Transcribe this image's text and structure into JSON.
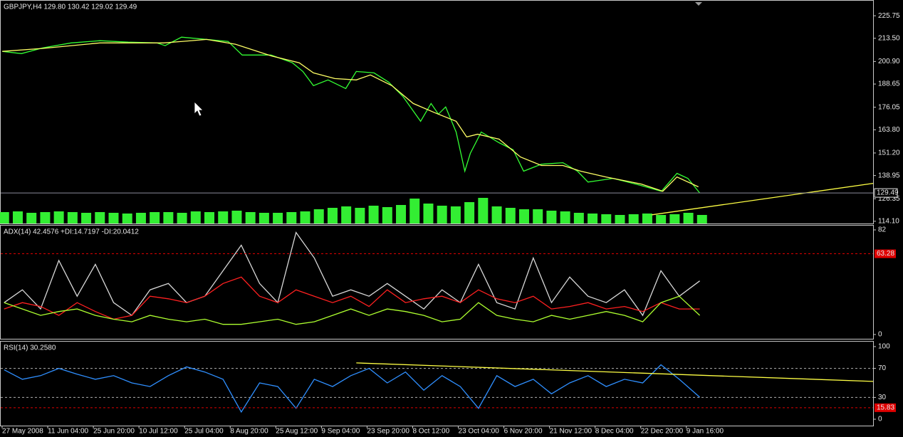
{
  "chart_data": [
    {
      "type": "line",
      "title": "GBPJPY,H4  129.80 130.42 129.02 129.49",
      "xlim": [
        -0.39,
        18.75
      ],
      "ylim": [
        112.9,
        234.3
      ],
      "y2lim": [
        0,
        314
      ],
      "yticks": [
        225.75,
        {
          "value": 213.5,
          "label": "213.50"
        },
        {
          "value": 200.9,
          "label": "200.90"
        },
        188.65,
        176.05,
        {
          "value": 163.8,
          "label": "163.80"
        },
        {
          "value": 151.2,
          "label": "151.20"
        },
        138.95,
        126.35,
        {
          "value": 114.1,
          "label": "114.10"
        }
      ],
      "last_price": 129.49,
      "series": [
        {
          "color": "#33ee33",
          "axis": "y2",
          "x": [
            -0.3,
            0,
            0.3,
            0.6,
            0.9,
            1.2,
            1.5,
            1.8,
            2.1,
            2.4,
            2.7,
            3,
            3.3,
            3.6,
            3.9,
            4.2,
            4.5,
            4.8,
            5.1,
            5.4,
            5.7,
            6,
            6.3,
            6.6,
            6.9,
            7.2,
            7.5,
            7.8,
            8.1,
            8.4,
            8.7,
            9,
            9.3,
            9.6,
            9.9,
            10.2,
            10.5,
            10.8,
            11.1,
            11.4,
            11.7,
            12,
            12.3,
            12.6,
            12.9,
            13.2,
            13.5,
            13.8,
            14.1,
            14.4,
            14.7,
            15
          ],
          "values": [
            16,
            17,
            15,
            16,
            17,
            16,
            15,
            16,
            15,
            14,
            15,
            16,
            16,
            15,
            17,
            16,
            17,
            18,
            16,
            15,
            15,
            16,
            17,
            20,
            22,
            24,
            22,
            25,
            23,
            26,
            35,
            28,
            25,
            24,
            30,
            36,
            24,
            22,
            20,
            20,
            18,
            17,
            15,
            14,
            13,
            12,
            13,
            14,
            12,
            13,
            15,
            12
          ]
        },
        {
          "color": "#33ff33",
          "x": [
            -0.34,
            0.08,
            0.55,
            1.17,
            1.8,
            2.42,
            3.05,
            3.23,
            3.59,
            4.14,
            4.61,
            4.92,
            5.55,
            6.02,
            6.25,
            6.48,
            6.8,
            7.19,
            7.42,
            7.81,
            8.13,
            8.44,
            8.83,
            9.06,
            9.22,
            9.38,
            9.61,
            9.8,
            9.92,
            10.16,
            10.55,
            10.86,
            11.09,
            11.48,
            11.95,
            12.27,
            12.5,
            13.05,
            13.67,
            14.11,
            14.45,
            14.69,
            14.95
          ],
          "values": [
            206.4,
            205.2,
            208.3,
            211,
            212.2,
            211.4,
            211,
            209.5,
            214.1,
            212.9,
            211.8,
            204.4,
            204.4,
            200.2,
            195.5,
            187.8,
            190.9,
            186.2,
            195.5,
            194.7,
            189.7,
            182,
            168.4,
            178.1,
            172.3,
            176.2,
            162.6,
            141.3,
            151,
            162.6,
            156.8,
            152.9,
            141.3,
            145.1,
            145.9,
            141.3,
            135.4,
            137.4,
            133.5,
            130.4,
            140.1,
            137.4,
            129.49
          ]
        },
        {
          "color": "#ffff66",
          "x": [
            -0.34,
            0.55,
            1.8,
            3.2,
            4.14,
            4.77,
            5.55,
            6.17,
            6.48,
            6.95,
            7.42,
            7.73,
            8.2,
            8.67,
            9.14,
            9.61,
            9.84,
            10.08,
            10.55,
            11.02,
            11.48,
            11.95,
            12.34,
            12.89,
            13.67,
            14.14,
            14.45,
            14.92
          ],
          "values": [
            206.4,
            208,
            211,
            211,
            212.9,
            210.3,
            204,
            200.2,
            194.7,
            191.6,
            190.9,
            193.6,
            187.8,
            178.1,
            173.1,
            168.4,
            159.9,
            161.4,
            158.7,
            149,
            144.4,
            144.4,
            141.3,
            138.2,
            134.3,
            130.4,
            138.2,
            132.8
          ]
        },
        {
          "color": "#ffff44",
          "x": [
            13.9,
            18.75
          ],
          "values": [
            117.6,
            134.7
          ]
        }
      ]
    },
    {
      "type": "line",
      "title": "ADX(14) 42.4576 +DI:14.7197 -DI:20.0412",
      "xlim": [
        -0.39,
        18.75
      ],
      "ylim": [
        -3.35,
        85.9
      ],
      "yticks": [
        82,
        0
      ],
      "highlight_level": 63.28,
      "level_color": "#e00000",
      "x": [
        -0.3,
        0.1,
        0.5,
        0.9,
        1.3,
        1.7,
        2.1,
        2.5,
        2.9,
        3.3,
        3.7,
        4.1,
        4.5,
        4.9,
        5.3,
        5.7,
        6.1,
        6.5,
        6.9,
        7.3,
        7.7,
        8.1,
        8.5,
        8.9,
        9.3,
        9.7,
        10.1,
        10.5,
        10.9,
        11.3,
        11.7,
        12.1,
        12.5,
        12.9,
        13.3,
        13.7,
        14.1,
        14.5,
        14.95
      ],
      "series": [
        {
          "color": "#d8d8d8",
          "values": [
            25,
            35,
            20,
            58,
            30,
            55,
            25,
            15,
            35,
            40,
            25,
            30,
            50,
            70,
            40,
            25,
            80,
            60,
            30,
            35,
            30,
            40,
            30,
            20,
            35,
            25,
            55,
            25,
            20,
            60,
            25,
            45,
            30,
            25,
            35,
            15,
            50,
            30,
            42
          ]
        },
        {
          "color": "#ff2020",
          "values": [
            20,
            25,
            22,
            15,
            25,
            18,
            12,
            15,
            30,
            28,
            25,
            30,
            40,
            45,
            30,
            25,
            35,
            30,
            25,
            30,
            22,
            35,
            25,
            28,
            30,
            25,
            35,
            28,
            25,
            30,
            20,
            22,
            25,
            20,
            22,
            18,
            25,
            20,
            20
          ]
        },
        {
          "color": "#adff2f",
          "values": [
            25,
            20,
            15,
            18,
            20,
            15,
            12,
            10,
            15,
            12,
            10,
            12,
            8,
            8,
            10,
            12,
            8,
            10,
            15,
            20,
            15,
            20,
            18,
            15,
            10,
            12,
            25,
            15,
            12,
            10,
            15,
            12,
            15,
            18,
            15,
            10,
            25,
            30,
            15
          ]
        }
      ]
    },
    {
      "type": "line",
      "title": "RSI(14) 30.2580",
      "xlim": [
        -0.39,
        18.75
      ],
      "ylim": [
        -8.8,
        107.8
      ],
      "yticks": [
        100,
        70,
        30,
        0
      ],
      "levels": [
        70,
        30
      ],
      "highlight_level": 15.83,
      "level_color": "#e00000",
      "xticks": [
        {
          "value": 0,
          "label": "27 May 2008"
        },
        {
          "value": 1,
          "label": "11 Jun 04:00"
        },
        {
          "value": 2,
          "label": "25 Jun 20:00"
        },
        {
          "value": 3,
          "label": "10 Jul 12:00"
        },
        {
          "value": 4,
          "label": "25 Jul 04:00"
        },
        {
          "value": 5,
          "label": "8 Aug 20:00"
        },
        {
          "value": 6,
          "label": "25 Aug 12:00"
        },
        {
          "value": 7,
          "label": "9 Sep 04:00"
        },
        {
          "value": 8,
          "label": "23 Sep 20:00"
        },
        {
          "value": 9,
          "label": "8 Oct 12:00"
        },
        {
          "value": 10,
          "label": "23 Oct 04:00"
        },
        {
          "value": 11,
          "label": "6 Nov 20:00"
        },
        {
          "value": 12,
          "label": "21 Nov 12:00"
        },
        {
          "value": 13,
          "label": "8 Dec 04:00"
        },
        {
          "value": 14,
          "label": "22 Dec 20:00"
        },
        {
          "value": 15,
          "label": "9 Jan 16:00"
        }
      ],
      "x": [
        -0.3,
        0.1,
        0.5,
        0.9,
        1.3,
        1.7,
        2.1,
        2.5,
        2.9,
        3.3,
        3.7,
        4.1,
        4.5,
        4.9,
        5.3,
        5.7,
        6.1,
        6.5,
        6.9,
        7.3,
        7.7,
        8.1,
        8.5,
        8.9,
        9.3,
        9.7,
        10.1,
        10.5,
        10.9,
        11.3,
        11.7,
        12.1,
        12.5,
        12.9,
        13.3,
        13.7,
        14.1,
        14.5,
        14.95
      ],
      "series": [
        {
          "color": "#2f8fff",
          "values": [
            68,
            55,
            60,
            70,
            62,
            55,
            60,
            50,
            45,
            60,
            72,
            65,
            55,
            10,
            50,
            45,
            15,
            55,
            45,
            60,
            70,
            50,
            65,
            40,
            60,
            45,
            15,
            60,
            45,
            55,
            35,
            50,
            60,
            45,
            55,
            50,
            75,
            55,
            30.258
          ]
        },
        {
          "color": "#ffff44",
          "x": [
            7.42,
            18.75
          ],
          "values": [
            77.5,
            52
          ]
        }
      ]
    }
  ]
}
